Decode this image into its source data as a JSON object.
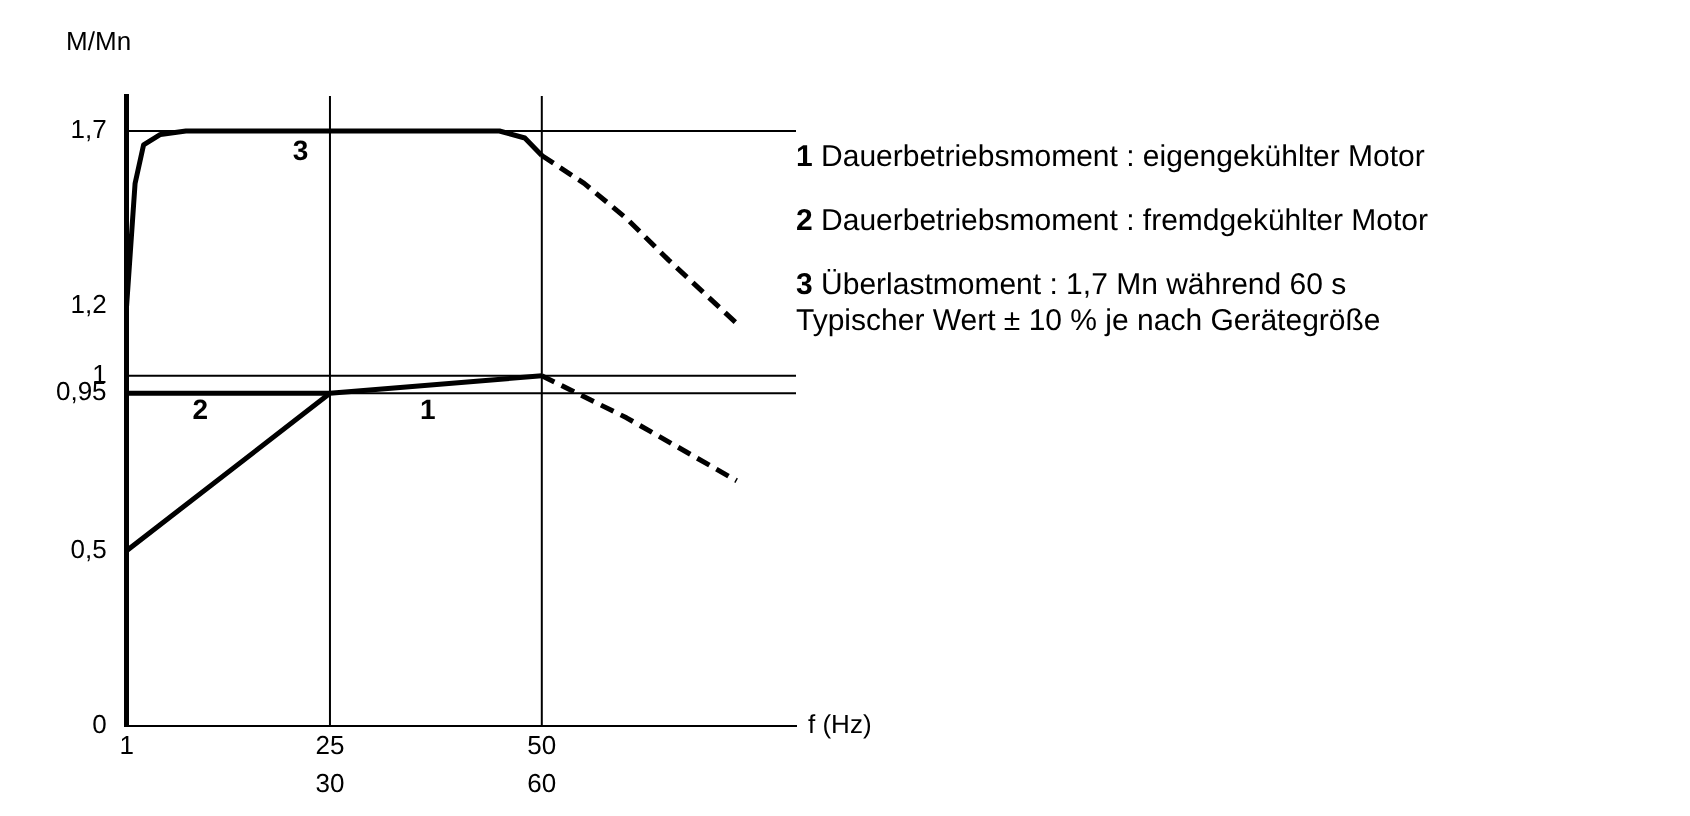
{
  "chart_data": {
    "type": "line",
    "xlabel": "f (Hz)",
    "ylabel": "M/Mn",
    "xlim": [
      1,
      80
    ],
    "xticks": [
      1,
      25,
      50
    ],
    "x2lim": [
      1.2,
      96
    ],
    "x2ticks": [
      30,
      60
    ],
    "ylim": [
      0,
      1.8
    ],
    "yticks": [
      0,
      {
        "value": 0.5,
        "label": "0,5"
      },
      {
        "value": 0.95,
        "label": "0,95"
      },
      1,
      {
        "value": 1.2,
        "label": "1,2"
      },
      {
        "value": 1.7,
        "label": "1,7"
      }
    ],
    "grid": false,
    "legend": false,
    "marker": "none",
    "series": [
      {
        "color": "#000000",
        "x": [
          1,
          2,
          3,
          5,
          8,
          45,
          48,
          50
        ],
        "values": [
          1.2,
          1.55,
          1.66,
          1.69,
          1.7,
          1.7,
          1.68,
          1.63
        ]
      },
      {
        "color": "#000000",
        "line_style": "dashed",
        "x": [
          50,
          55,
          60,
          65,
          73
        ],
        "values": [
          1.63,
          1.55,
          1.45,
          1.33,
          1.15
        ]
      },
      {
        "color": "#000000",
        "x": [
          1,
          25,
          50
        ],
        "values": [
          0.5,
          0.95,
          1
        ]
      },
      {
        "color": "#000000",
        "line_style": "dashed",
        "x": [
          50,
          60,
          73
        ],
        "values": [
          1,
          0.88,
          0.7
        ]
      },
      {
        "color": "#000000",
        "x": [
          1,
          25
        ],
        "values": [
          0.95,
          0.95
        ]
      }
    ],
    "ref_lines": [
      {
        "axis": "x",
        "value": 25
      },
      {
        "axis": "x",
        "value": 50
      },
      {
        "axis": "y",
        "value": 0.95
      },
      {
        "axis": "y",
        "value": 1
      },
      {
        "axis": "y",
        "value": 1.7
      }
    ],
    "annotations": [
      "3",
      "2",
      "1",
      "1 Dauerbetriebsmoment : eigengekühlter Motor",
      "2 Dauerbetriebsmoment : fremdgekühlter Motor",
      "3 Überlastmoment : 1,7 Mn während 60 s\nTypischer Wert ± 10 % je nach Gerätegröße"
    ]
  }
}
